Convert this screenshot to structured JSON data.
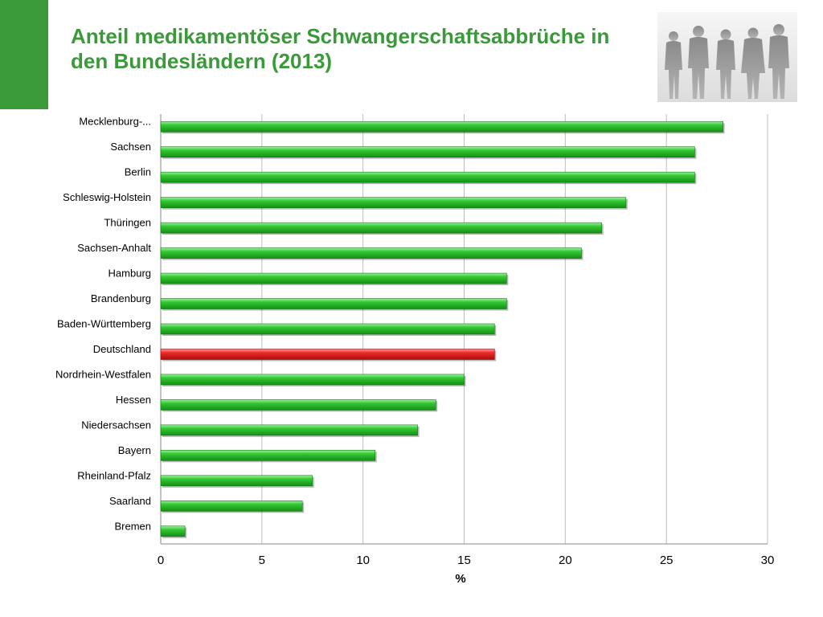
{
  "slide": {
    "title": "Anteil medikamentöser Schwangerschaftsabbrüche  in den Bundesländern (2013)"
  },
  "colors": {
    "accent": "#3a9a3a",
    "bar": "#2ec22e",
    "highlight_bar": "#e81818"
  },
  "chart_data": {
    "type": "bar",
    "orientation": "horizontal",
    "categories": [
      "Mecklenburg-...",
      "Sachsen",
      "Berlin",
      "Schleswig-Holstein",
      "Thüringen",
      "Sachsen-Anhalt",
      "Hamburg",
      "Brandenburg",
      "Baden-Württemberg",
      "Deutschland",
      "Nordrhein-Westfalen",
      "Hessen",
      "Niedersachsen",
      "Bayern",
      "Rheinland-Pfalz",
      "Saarland",
      "Bremen"
    ],
    "values": [
      27.8,
      26.4,
      26.4,
      23.0,
      21.8,
      20.8,
      17.1,
      17.1,
      16.5,
      16.5,
      15.0,
      13.6,
      12.7,
      10.6,
      7.5,
      7.0,
      1.2
    ],
    "highlight": "Deutschland",
    "xlabel": "%",
    "ylabel": "",
    "xlim": [
      0,
      30
    ],
    "xticks": [
      0,
      5,
      10,
      15,
      20,
      25,
      30
    ],
    "grid": true,
    "legend": "none"
  }
}
